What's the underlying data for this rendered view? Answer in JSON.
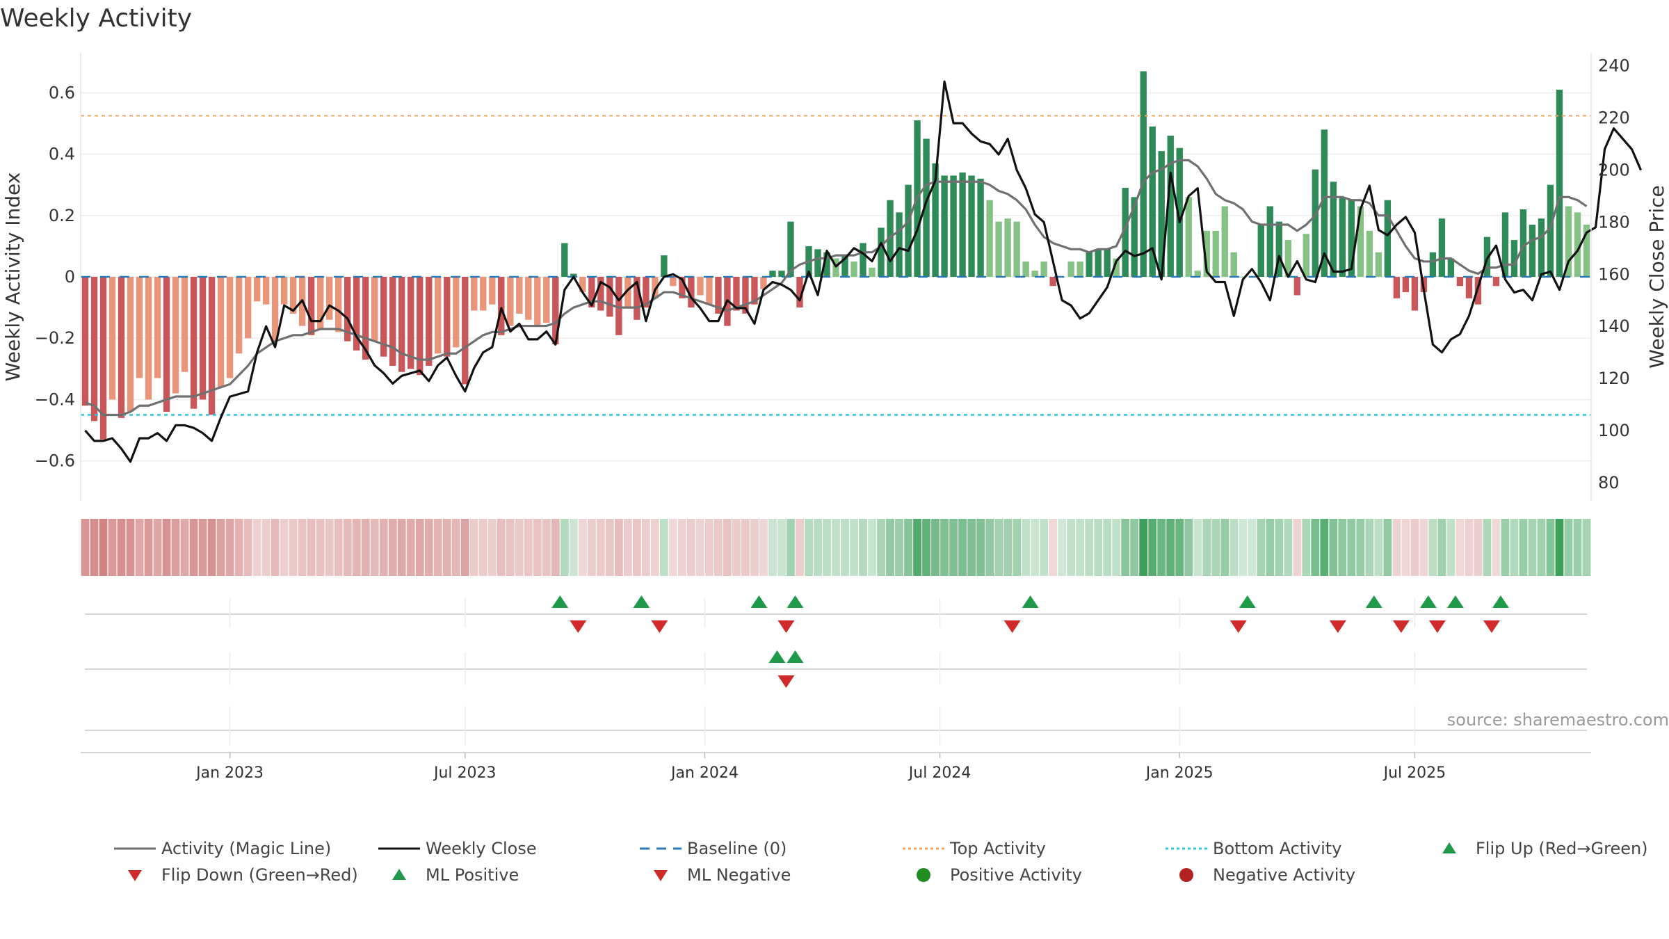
{
  "chart_data": {
    "type": "bar",
    "title": "Weekly Activity",
    "ylabel_left": "Weekly Activity Index",
    "ylabel_right": "Weekly Close Price",
    "ylim_left": [
      -0.73,
      0.73
    ],
    "ylim_right": [
      73,
      245
    ],
    "yticks_left": [
      0.6,
      0.4,
      0.2,
      0,
      -0.2,
      -0.4,
      -0.6
    ],
    "ytick_labels_left": [
      "0.6",
      "0.4",
      "0.2",
      "0",
      "−0.2",
      "−0.4",
      "−0.6"
    ],
    "yticks_right": [
      240,
      220,
      200,
      180,
      160,
      140,
      120,
      100,
      80
    ],
    "ytick_labels_right": [
      "240",
      "220",
      "200",
      "180",
      "160",
      "140",
      "120",
      "100",
      "80"
    ],
    "xticks": [
      {
        "label": "Jan 2023",
        "week": 16
      },
      {
        "label": "Jul 2023",
        "week": 42
      },
      {
        "label": "Jan 2024",
        "week": 68.5
      },
      {
        "label": "Jul 2024",
        "week": 94.5
      },
      {
        "label": "Jan 2025",
        "week": 121
      },
      {
        "label": "Jul 2025",
        "week": 147
      }
    ],
    "top_activity": 0.525,
    "bottom_activity": -0.45,
    "baseline": 0,
    "activity": [
      -0.42,
      -0.47,
      -0.53,
      -0.4,
      -0.46,
      -0.44,
      -0.33,
      -0.4,
      -0.33,
      -0.44,
      -0.38,
      -0.31,
      -0.43,
      -0.4,
      -0.45,
      -0.36,
      -0.33,
      -0.25,
      -0.2,
      -0.08,
      -0.09,
      -0.21,
      -0.09,
      -0.12,
      -0.16,
      -0.19,
      -0.17,
      -0.14,
      -0.18,
      -0.21,
      -0.24,
      -0.27,
      -0.21,
      -0.26,
      -0.29,
      -0.31,
      -0.3,
      -0.32,
      -0.29,
      -0.25,
      -0.26,
      -0.23,
      -0.35,
      -0.11,
      -0.11,
      -0.09,
      -0.19,
      -0.16,
      -0.12,
      -0.14,
      -0.16,
      -0.15,
      -0.22,
      0.11,
      0.01,
      -0.05,
      -0.1,
      -0.11,
      -0.13,
      -0.19,
      -0.1,
      -0.14,
      -0.1,
      -0.07,
      0.07,
      -0.03,
      -0.07,
      -0.1,
      -0.06,
      -0.09,
      -0.12,
      -0.16,
      -0.11,
      -0.12,
      -0.09,
      -0.04,
      0.02,
      0.02,
      0.18,
      -0.1,
      0.1,
      0.09,
      0.08,
      0.06,
      0.07,
      0.05,
      0.11,
      0.03,
      0.16,
      0.25,
      0.21,
      0.3,
      0.51,
      0.45,
      0.37,
      0.33,
      0.33,
      0.34,
      0.33,
      0.32,
      0.25,
      0.18,
      0.19,
      0.18,
      0.05,
      0.02,
      0.05,
      -0.03,
      0.0,
      0.05,
      0.05,
      0.08,
      0.09,
      0.09,
      0.06,
      0.29,
      0.26,
      0.67,
      0.49,
      0.41,
      0.46,
      0.42,
      0.26,
      0.02,
      0.15,
      0.15,
      0.23,
      0.08,
      0.0,
      0.0,
      0.17,
      0.23,
      0.18,
      0.12,
      -0.06,
      0.14,
      0.35,
      0.48,
      0.31,
      0.26,
      0.25,
      0.23,
      0.15,
      0.08,
      0.25,
      -0.07,
      -0.05,
      -0.11,
      -0.05,
      0.08,
      0.19,
      0.06,
      -0.03,
      -0.07,
      -0.09,
      0.13,
      -0.03,
      0.21,
      0.12,
      0.22,
      0.17,
      0.19,
      0.3,
      0.61,
      0.23,
      0.21,
      0.17
    ],
    "weekly_close": [
      100,
      96,
      96,
      97,
      93,
      88,
      97,
      97,
      99,
      96,
      102,
      102,
      101,
      99,
      96,
      105,
      113,
      114,
      115,
      130,
      140,
      132,
      148,
      146,
      150,
      142,
      142,
      148,
      146,
      143,
      136,
      131,
      125,
      122,
      118,
      121,
      122,
      123,
      119,
      125,
      128,
      121,
      115,
      124,
      130,
      132,
      147,
      138,
      141,
      135,
      135,
      138,
      133,
      154,
      159,
      153,
      148,
      157,
      155,
      150,
      154,
      157,
      142,
      154,
      159,
      160,
      158,
      151,
      147,
      142,
      142,
      150,
      147,
      147,
      141,
      154,
      157,
      156,
      154,
      150,
      161,
      152,
      169,
      163,
      166,
      170,
      168,
      165,
      172,
      165,
      170,
      169,
      177,
      188,
      196,
      234,
      218,
      218,
      214,
      211,
      210,
      206,
      212,
      200,
      193,
      183,
      180,
      165,
      150,
      148,
      143,
      145,
      150,
      155,
      165,
      169,
      167,
      168,
      170,
      158,
      199,
      180,
      190,
      193,
      161,
      157,
      157,
      144,
      158,
      162,
      157,
      150,
      167,
      159,
      165,
      158,
      157,
      168,
      161,
      161,
      162,
      185,
      194,
      177,
      175,
      179,
      182,
      176,
      154,
      133,
      130,
      135,
      137,
      144,
      155,
      166,
      171,
      158,
      153,
      154,
      150,
      160,
      161,
      154,
      165,
      169,
      176,
      178,
      208,
      216,
      212,
      208,
      200
    ],
    "magic_line": [
      -0.41,
      -0.42,
      -0.45,
      -0.45,
      -0.45,
      -0.44,
      -0.42,
      -0.42,
      -0.41,
      -0.4,
      -0.39,
      -0.39,
      -0.39,
      -0.38,
      -0.37,
      -0.36,
      -0.35,
      -0.32,
      -0.29,
      -0.25,
      -0.23,
      -0.21,
      -0.2,
      -0.19,
      -0.19,
      -0.18,
      -0.17,
      -0.17,
      -0.17,
      -0.18,
      -0.19,
      -0.2,
      -0.21,
      -0.22,
      -0.23,
      -0.25,
      -0.26,
      -0.27,
      -0.27,
      -0.26,
      -0.25,
      -0.25,
      -0.23,
      -0.21,
      -0.19,
      -0.18,
      -0.18,
      -0.17,
      -0.16,
      -0.16,
      -0.16,
      -0.16,
      -0.15,
      -0.12,
      -0.1,
      -0.09,
      -0.08,
      -0.08,
      -0.09,
      -0.1,
      -0.1,
      -0.1,
      -0.09,
      -0.07,
      -0.05,
      -0.05,
      -0.06,
      -0.07,
      -0.08,
      -0.09,
      -0.1,
      -0.11,
      -0.1,
      -0.09,
      -0.08,
      -0.06,
      -0.04,
      -0.02,
      0.02,
      0.04,
      0.05,
      0.06,
      0.06,
      0.07,
      0.07,
      0.07,
      0.08,
      0.08,
      0.1,
      0.13,
      0.15,
      0.18,
      0.26,
      0.3,
      0.31,
      0.31,
      0.31,
      0.31,
      0.31,
      0.31,
      0.3,
      0.28,
      0.27,
      0.25,
      0.22,
      0.17,
      0.13,
      0.11,
      0.1,
      0.09,
      0.09,
      0.08,
      0.09,
      0.09,
      0.1,
      0.16,
      0.23,
      0.31,
      0.34,
      0.35,
      0.37,
      0.38,
      0.38,
      0.36,
      0.32,
      0.27,
      0.25,
      0.24,
      0.22,
      0.18,
      0.17,
      0.17,
      0.17,
      0.17,
      0.15,
      0.17,
      0.2,
      0.26,
      0.26,
      0.26,
      0.25,
      0.25,
      0.24,
      0.2,
      0.2,
      0.15,
      0.1,
      0.06,
      0.05,
      0.05,
      0.06,
      0.06,
      0.04,
      0.02,
      0.01,
      0.03,
      0.03,
      0.04,
      0.04,
      0.1,
      0.12,
      0.13,
      0.16,
      0.26,
      0.26,
      0.25,
      0.23
    ],
    "flip_up": [
      52.5,
      61.5,
      74.5,
      78.5,
      104.5,
      128.5,
      142.5,
      148.5,
      151.5,
      156.5
    ],
    "flip_down": [
      54.5,
      63.5,
      77.5,
      102.5,
      127.5,
      138.5,
      145.5,
      149.5,
      155.5
    ],
    "ml_positive": [
      76.5,
      78.5
    ],
    "ml_negative": [
      77.5
    ],
    "legend": {
      "magic_line": "Activity (Magic Line)",
      "weekly_close": "Weekly Close",
      "baseline": "Baseline (0)",
      "top_activity": "Top Activity",
      "bottom_activity": "Bottom Activity",
      "flip_up": "Flip Up (Red→Green)",
      "flip_down": "Flip Down (Green→Red)",
      "ml_positive": "ML Positive",
      "ml_negative": "ML Negative",
      "positive_activity": "Positive Activity",
      "negative_activity": "Negative Activity"
    },
    "source": "source: sharemaestro.com"
  },
  "colors": {
    "pos_strong": "#2e8b57",
    "pos_weak": "#86c286",
    "neg_strong": "#c9575a",
    "neg_weak": "#e8957a",
    "close_line": "#111111",
    "magic_line": "#707070",
    "baseline": "#2a7ab8",
    "top": "#e8a869",
    "bottom": "#2ec4d9",
    "up_marker": "#1f9a4a",
    "down_marker": "#d02a2a",
    "pos_dot": "#228b22",
    "neg_dot": "#b22222"
  }
}
